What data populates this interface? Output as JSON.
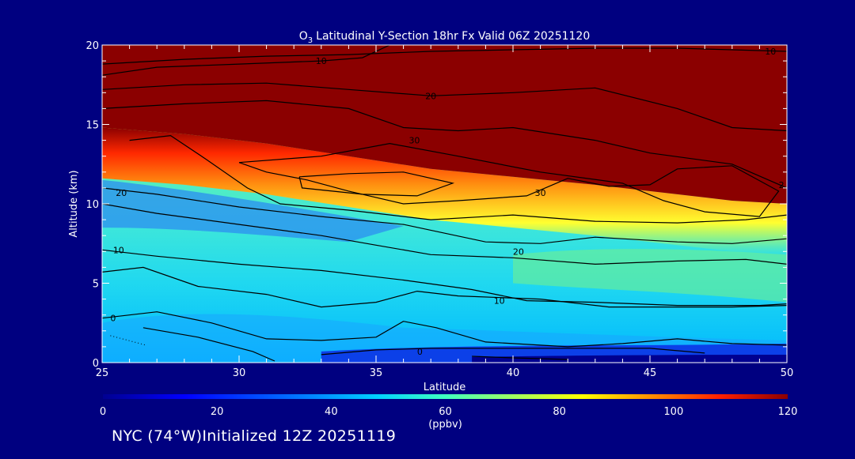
{
  "chart_data": {
    "type": "heatmap",
    "title": "Latitudinal Y-Section 18hr  Fx Valid 06Z 20251120",
    "title_species": "O",
    "title_species_subscript": "3",
    "xlabel": "Latitude",
    "ylabel": "Altitude (km)",
    "xlim": [
      25,
      50
    ],
    "ylim": [
      0,
      20
    ],
    "x_ticks": [
      "25",
      "30",
      "35",
      "40",
      "45",
      "50"
    ],
    "y_ticks": [
      "0",
      "5",
      "10",
      "15",
      "20"
    ],
    "colorbar": {
      "label": "(ppbv)",
      "range": [
        0,
        120
      ],
      "ticks": [
        "0",
        "20",
        "40",
        "60",
        "80",
        "100",
        "120"
      ]
    },
    "contour_labels": [
      {
        "text": "10",
        "lat": 33.0,
        "alt": 19.0
      },
      {
        "text": "20",
        "lat": 37.0,
        "alt": 16.8
      },
      {
        "text": "30",
        "lat": 36.4,
        "alt": 14.0
      },
      {
        "text": "30",
        "lat": 41.0,
        "alt": 10.7
      },
      {
        "text": "20",
        "lat": 25.7,
        "alt": 10.7
      },
      {
        "text": "10",
        "lat": 25.6,
        "alt": 7.1
      },
      {
        "text": "20",
        "lat": 40.2,
        "alt": 7.0
      },
      {
        "text": "10",
        "lat": 39.5,
        "alt": 3.9
      },
      {
        "text": "0",
        "lat": 25.4,
        "alt": 2.8
      },
      {
        "text": "0",
        "lat": 36.6,
        "alt": 0.7
      },
      {
        "text": "10",
        "lat": 49.4,
        "alt": 19.6
      },
      {
        "text": "2",
        "lat": 49.8,
        "alt": 11.2
      }
    ],
    "contours": [
      [
        [
          25,
          18.8
        ],
        [
          28,
          19.1
        ],
        [
          31,
          19.3
        ],
        [
          34,
          19.4
        ],
        [
          37,
          19.6
        ],
        [
          40,
          19.7
        ],
        [
          43,
          19.8
        ],
        [
          46,
          19.8
        ],
        [
          50,
          19.6
        ]
      ],
      [
        [
          25,
          18.1
        ],
        [
          27,
          18.6
        ],
        [
          30,
          18.8
        ],
        [
          33,
          19.0
        ],
        [
          34.5,
          19.2
        ],
        [
          35.5,
          20
        ]
      ],
      [
        [
          25,
          17.2
        ],
        [
          28,
          17.5
        ],
        [
          31,
          17.6
        ],
        [
          34,
          17.2
        ],
        [
          37,
          16.8
        ],
        [
          40,
          17.0
        ],
        [
          43,
          17.3
        ],
        [
          46,
          16.0
        ],
        [
          48,
          14.8
        ],
        [
          50,
          14.6
        ]
      ],
      [
        [
          25,
          16.0
        ],
        [
          28,
          16.3
        ],
        [
          31,
          16.5
        ],
        [
          34,
          16.0
        ],
        [
          36,
          14.8
        ],
        [
          38,
          14.6
        ],
        [
          40,
          14.8
        ],
        [
          43,
          14.0
        ],
        [
          45,
          13.2
        ],
        [
          48,
          12.5
        ],
        [
          50,
          11.0
        ]
      ],
      [
        [
          30,
          12.6
        ],
        [
          33,
          13.0
        ],
        [
          35.5,
          13.8
        ],
        [
          38,
          13.0
        ],
        [
          41,
          12.0
        ],
        [
          44,
          11.3
        ],
        [
          45.5,
          10.2
        ],
        [
          47,
          9.5
        ],
        [
          49,
          9.2
        ],
        [
          49.7,
          10.8
        ],
        [
          48,
          12.4
        ],
        [
          46,
          12.2
        ],
        [
          45,
          11.2
        ],
        [
          43.5,
          11.1
        ],
        [
          42,
          11.6
        ],
        [
          40.5,
          10.5
        ],
        [
          38,
          10.2
        ],
        [
          36,
          10.0
        ],
        [
          34,
          10.8
        ],
        [
          32.5,
          11.5
        ],
        [
          31,
          12.0
        ],
        [
          30,
          12.6
        ]
      ],
      [
        [
          32.2,
          11.7
        ],
        [
          34,
          11.9
        ],
        [
          36,
          12.0
        ],
        [
          37.8,
          11.3
        ],
        [
          36.5,
          10.5
        ],
        [
          34.5,
          10.6
        ],
        [
          32.3,
          11.0
        ],
        [
          32.2,
          11.7
        ]
      ],
      [
        [
          26,
          14.0
        ],
        [
          27.5,
          14.3
        ],
        [
          28.8,
          12.8
        ],
        [
          30.3,
          11.0
        ],
        [
          31.5,
          10.0
        ],
        [
          34,
          9.6
        ],
        [
          37,
          9.0
        ],
        [
          40,
          9.3
        ],
        [
          43,
          8.9
        ],
        [
          46,
          8.8
        ],
        [
          48.5,
          9.0
        ],
        [
          50,
          9.3
        ]
      ],
      [
        [
          25,
          11.0
        ],
        [
          27,
          10.6
        ],
        [
          30,
          9.8
        ],
        [
          33,
          9.2
        ],
        [
          36,
          8.7
        ],
        [
          39,
          7.6
        ],
        [
          41,
          7.5
        ],
        [
          43,
          7.9
        ],
        [
          46,
          7.6
        ],
        [
          48,
          7.5
        ],
        [
          50,
          7.8
        ]
      ],
      [
        [
          25,
          10.0
        ],
        [
          27,
          9.4
        ],
        [
          30,
          8.7
        ],
        [
          33,
          8.0
        ],
        [
          35,
          7.4
        ],
        [
          37,
          6.8
        ],
        [
          40,
          6.6
        ],
        [
          43,
          6.2
        ],
        [
          46,
          6.4
        ],
        [
          48.5,
          6.5
        ],
        [
          50,
          6.2
        ]
      ],
      [
        [
          25,
          7.1
        ],
        [
          27,
          6.7
        ],
        [
          30,
          6.2
        ],
        [
          33,
          5.8
        ],
        [
          36,
          5.2
        ],
        [
          38.5,
          4.6
        ],
        [
          40.5,
          3.9
        ],
        [
          43,
          3.8
        ],
        [
          46,
          3.6
        ],
        [
          49,
          3.6
        ],
        [
          50,
          3.7
        ]
      ],
      [
        [
          25,
          5.7
        ],
        [
          26.5,
          6.0
        ],
        [
          28.5,
          4.8
        ],
        [
          31,
          4.3
        ],
        [
          33,
          3.5
        ],
        [
          35,
          3.8
        ],
        [
          36.5,
          4.5
        ],
        [
          38,
          4.2
        ],
        [
          41,
          4.0
        ],
        [
          43.5,
          3.5
        ],
        [
          46,
          3.5
        ],
        [
          48,
          3.5
        ],
        [
          50,
          3.6
        ]
      ],
      [
        [
          25,
          2.8
        ],
        [
          27,
          3.2
        ],
        [
          29,
          2.5
        ],
        [
          31,
          1.5
        ],
        [
          33,
          1.4
        ],
        [
          35,
          1.6
        ],
        [
          36,
          2.6
        ],
        [
          37.2,
          2.2
        ],
        [
          39,
          1.3
        ],
        [
          42,
          1.0
        ],
        [
          44,
          1.2
        ],
        [
          46,
          1.5
        ],
        [
          48,
          1.2
        ],
        [
          50,
          1.1
        ]
      ],
      [
        [
          33,
          0.5
        ],
        [
          35,
          0.8
        ],
        [
          37,
          0.9
        ],
        [
          40,
          0.9
        ],
        [
          43,
          0.9
        ],
        [
          45,
          0.9
        ],
        [
          47,
          0.6
        ]
      ],
      [
        [
          38.5,
          0.4
        ],
        [
          40,
          0.3
        ],
        [
          42,
          0.2
        ]
      ],
      [
        [
          26.5,
          2.2
        ],
        [
          28.5,
          1.6
        ],
        [
          30.5,
          0.7
        ],
        [
          31.3,
          0.1
        ]
      ]
    ]
  },
  "footer": {
    "location": "NYC (74°W)Initialized 12Z 20251119"
  }
}
